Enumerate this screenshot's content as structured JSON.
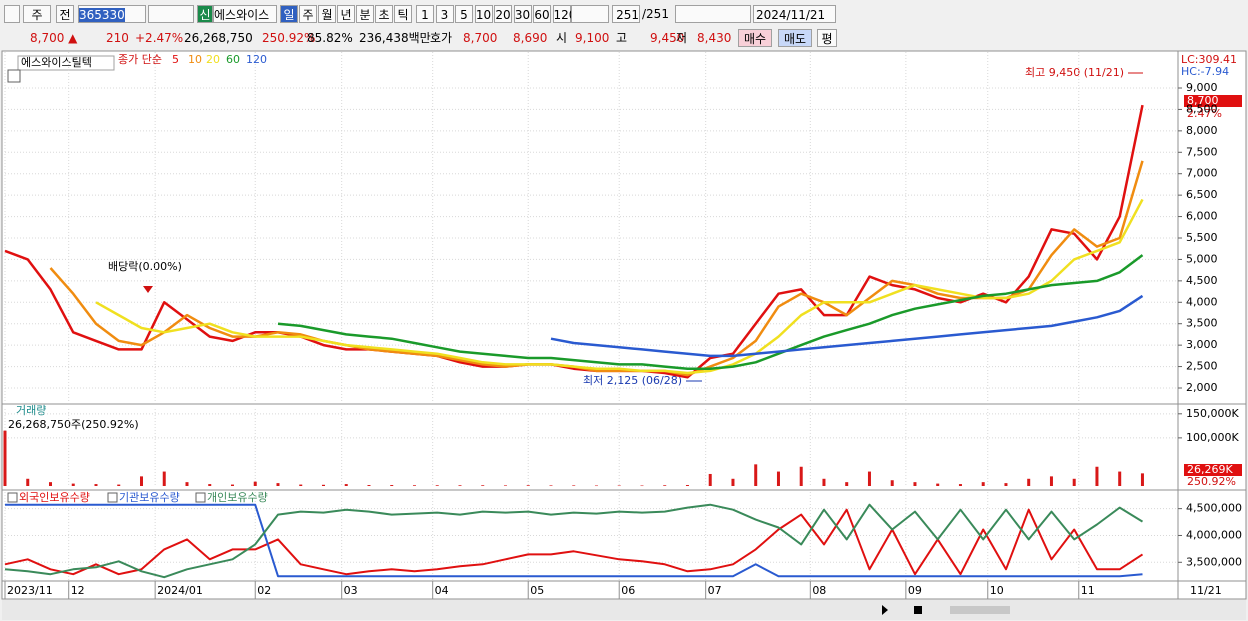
{
  "toolbar": {
    "period_type": "주",
    "prev": "전",
    "code": "365330",
    "badge": "신",
    "name": "에스와이스",
    "units": [
      "일",
      "주",
      "월",
      "년",
      "분",
      "초",
      "틱"
    ],
    "intervals": [
      "1",
      "3",
      "5",
      "10",
      "20",
      "30",
      "60",
      "120"
    ],
    "count": "251",
    "total": "/251",
    "date": "2024/11/21"
  },
  "info": {
    "price": "8,700 ▲",
    "change": "210",
    "change_pct": "+2.47%",
    "volume": "26,268,750",
    "volume_pct": "250.92%",
    "turnover": "85.82%",
    "amount": "236,438백만",
    "quote_label": "호가",
    "ask": "8,700",
    "bid": "8,690",
    "open_label": "시",
    "open": "9,100",
    "high_label": "고",
    "high": "9,450",
    "low_label": "저",
    "low": "8,430",
    "buy": "매수",
    "sell": "매도",
    "avg": "평"
  },
  "chart_data": [
    {
      "type": "line",
      "title": "에스와이스틸텍",
      "legend_title": "종가 단순",
      "x": [
        0,
        5,
        10,
        15,
        20,
        25,
        30,
        35,
        40,
        45,
        50,
        55,
        60,
        65,
        70,
        75,
        80,
        85,
        90,
        95,
        100,
        105,
        110,
        115,
        120,
        125,
        130,
        135,
        140,
        145,
        150,
        155,
        160,
        165,
        170,
        175,
        180,
        185,
        190,
        195,
        200,
        205,
        210,
        215,
        220,
        225,
        230,
        235,
        240,
        245,
        250
      ],
      "xlim": [
        0,
        251
      ],
      "xticks": [
        {
          "value": 0,
          "label": "2023/11"
        },
        {
          "value": 14,
          "label": "12"
        },
        {
          "value": 33,
          "label": "2024/01"
        },
        {
          "value": 55,
          "label": "02"
        },
        {
          "value": 74,
          "label": "03"
        },
        {
          "value": 94,
          "label": "04"
        },
        {
          "value": 115,
          "label": "05"
        },
        {
          "value": 135,
          "label": "06"
        },
        {
          "value": 154,
          "label": "07"
        },
        {
          "value": 177,
          "label": "08"
        },
        {
          "value": 198,
          "label": "09"
        },
        {
          "value": 216,
          "label": "10"
        },
        {
          "value": 236,
          "label": "11"
        }
      ],
      "last_date": "11/21",
      "ylim": [
        1650,
        9840
      ],
      "yticks": [
        {
          "value": 2000,
          "label": "2,000"
        },
        {
          "value": 2500,
          "label": "2,500"
        },
        {
          "value": 3000,
          "label": "3,000"
        },
        {
          "value": 3500,
          "label": "3,500"
        },
        {
          "value": 4000,
          "label": "4,000"
        },
        {
          "value": 4500,
          "label": "4,500"
        },
        {
          "value": 5000,
          "label": "5,000"
        },
        {
          "value": 5500,
          "label": "5,500"
        },
        {
          "value": 6000,
          "label": "6,000"
        },
        {
          "value": 6500,
          "label": "6,500"
        },
        {
          "value": 7000,
          "label": "7,000"
        },
        {
          "value": 7500,
          "label": "7,500"
        },
        {
          "value": 8000,
          "label": "8,000"
        },
        {
          "value": 8500,
          "label": "8,500"
        },
        {
          "value": 9000,
          "label": "9,000"
        }
      ],
      "grid": true,
      "series": [
        {
          "name": "5",
          "color": "#e01010",
          "values": [
            5200,
            5000,
            4300,
            3300,
            3100,
            2900,
            2900,
            4000,
            3600,
            3200,
            3100,
            3300,
            3300,
            3200,
            3000,
            2900,
            2900,
            2850,
            2800,
            2750,
            2600,
            2500,
            2500,
            2550,
            2550,
            2450,
            2400,
            2400,
            2400,
            2350,
            2250,
            2700,
            2800,
            3500,
            4200,
            4300,
            3700,
            3700,
            4600,
            4400,
            4300,
            4100,
            4000,
            4200,
            4000,
            4600,
            5700,
            5600,
            5000,
            6000,
            8600
          ]
        },
        {
          "name": "10",
          "color": "#f08c10",
          "values": [
            null,
            null,
            4800,
            4200,
            3500,
            3100,
            3000,
            3300,
            3700,
            3400,
            3200,
            3200,
            3300,
            3250,
            3100,
            3000,
            2900,
            2850,
            2800,
            2750,
            2650,
            2550,
            2500,
            2550,
            2550,
            2500,
            2400,
            2400,
            2400,
            2400,
            2300,
            2500,
            2700,
            3100,
            3900,
            4200,
            4000,
            3700,
            4100,
            4500,
            4400,
            4200,
            4100,
            4100,
            4100,
            4300,
            5100,
            5700,
            5300,
            5500,
            7300
          ]
        },
        {
          "name": "20",
          "color": "#f0e020",
          "values": [
            null,
            null,
            null,
            null,
            4000,
            3700,
            3400,
            3300,
            3400,
            3500,
            3300,
            3200,
            3200,
            3200,
            3100,
            3000,
            2950,
            2900,
            2850,
            2800,
            2700,
            2600,
            2550,
            2550,
            2550,
            2500,
            2450,
            2450,
            2400,
            2400,
            2350,
            2400,
            2550,
            2800,
            3200,
            3700,
            4000,
            4000,
            4000,
            4200,
            4400,
            4300,
            4200,
            4100,
            4100,
            4200,
            4500,
            5000,
            5200,
            5400,
            6400
          ]
        },
        {
          "name": "60",
          "color": "#1a9a2a",
          "values": [
            null,
            null,
            null,
            null,
            null,
            null,
            null,
            null,
            null,
            null,
            null,
            null,
            3500,
            3450,
            3350,
            3250,
            3200,
            3150,
            3050,
            2950,
            2850,
            2800,
            2750,
            2700,
            2700,
            2650,
            2600,
            2550,
            2550,
            2500,
            2450,
            2450,
            2500,
            2600,
            2800,
            3000,
            3200,
            3350,
            3500,
            3700,
            3850,
            3950,
            4050,
            4150,
            4200,
            4300,
            4400,
            4450,
            4500,
            4700,
            5100
          ]
        },
        {
          "name": "120",
          "color": "#2a5ad0",
          "values": [
            null,
            null,
            null,
            null,
            null,
            null,
            null,
            null,
            null,
            null,
            null,
            null,
            null,
            null,
            null,
            null,
            null,
            null,
            null,
            null,
            null,
            null,
            null,
            null,
            3150,
            3050,
            3000,
            2950,
            2900,
            2850,
            2800,
            2750,
            2750,
            2800,
            2850,
            2900,
            2950,
            3000,
            3050,
            3100,
            3150,
            3200,
            3250,
            3300,
            3350,
            3400,
            3450,
            3550,
            3650,
            3800,
            4150
          ]
        }
      ],
      "annotations": {
        "high": "최고 9,450 (11/21)",
        "low": "최저 2,125 (06/28)",
        "dividend": "배당락(0.00%)",
        "lc": "LC:309.41",
        "hc": "HC:-7.94",
        "current": "8,700",
        "current_pct": "2.47%"
      }
    },
    {
      "type": "bar",
      "title": "거래량",
      "subtitle": "26,268,750주(250.92%)",
      "color": "#d81818",
      "x": [
        0,
        5,
        10,
        15,
        20,
        25,
        30,
        35,
        40,
        45,
        50,
        55,
        60,
        65,
        70,
        75,
        80,
        85,
        90,
        95,
        100,
        105,
        110,
        115,
        120,
        125,
        130,
        135,
        140,
        145,
        150,
        155,
        160,
        165,
        170,
        175,
        180,
        185,
        190,
        195,
        200,
        205,
        210,
        215,
        220,
        225,
        230,
        235,
        240,
        245,
        250
      ],
      "xlim": [
        0,
        251
      ],
      "ylim": [
        0,
        160000
      ],
      "yticks": [
        {
          "value": 100000,
          "label": "100,000K"
        },
        {
          "value": 150000,
          "label": "150,000K"
        }
      ],
      "grid": true,
      "values": [
        115000,
        15000,
        8000,
        5000,
        4000,
        3000,
        20000,
        30000,
        8000,
        4000,
        3000,
        9000,
        6000,
        3000,
        2500,
        4000,
        2000,
        2000,
        1500,
        1500,
        1500,
        1500,
        1200,
        1500,
        1200,
        1200,
        1000,
        1000,
        1000,
        1500,
        2000,
        25000,
        15000,
        45000,
        30000,
        40000,
        15000,
        8000,
        30000,
        12000,
        8000,
        5000,
        4000,
        8000,
        6000,
        15000,
        20000,
        15000,
        40000,
        30000,
        26269
      ],
      "annotations": {
        "current": "26,269K",
        "current_pct": "250.92%"
      }
    },
    {
      "type": "line",
      "x": [
        0,
        5,
        10,
        15,
        20,
        25,
        30,
        35,
        40,
        45,
        50,
        55,
        60,
        65,
        70,
        75,
        80,
        85,
        90,
        95,
        100,
        105,
        110,
        115,
        120,
        125,
        130,
        135,
        140,
        145,
        150,
        155,
        160,
        165,
        170,
        175,
        180,
        185,
        190,
        195,
        200,
        205,
        210,
        215,
        220,
        225,
        230,
        235,
        240,
        245,
        250
      ],
      "xlim": [
        0,
        251
      ],
      "ylim": [
        3170000,
        4810000
      ],
      "yticks": [
        {
          "value": 3500000,
          "label": "3,500,000"
        },
        {
          "value": 4000000,
          "label": "4,000,000"
        },
        {
          "value": 4500000,
          "label": "4,500,000"
        }
      ],
      "grid": true,
      "series": [
        {
          "name": "외국인보유수량",
          "color": "#e01010",
          "values": [
            3463000,
            3556000,
            3370000,
            3278000,
            3463000,
            3278000,
            3370000,
            3741000,
            3926000,
            3556000,
            3741000,
            3741000,
            3926000,
            3463000,
            3370000,
            3278000,
            3333000,
            3370000,
            3333000,
            3370000,
            3426000,
            3463000,
            3556000,
            3648000,
            3648000,
            3704000,
            3630000,
            3556000,
            3519000,
            3463000,
            3333000,
            3370000,
            3463000,
            3741000,
            4111000,
            4389000,
            3833000,
            4481000,
            3370000,
            4111000,
            3278000,
            3926000,
            3278000,
            4111000,
            3370000,
            4481000,
            3556000,
            4111000,
            3370000,
            3370000,
            3648000
          ]
        },
        {
          "name": "기관보유수량",
          "color": "#2a5ad0",
          "values": [
            4574000,
            4574000,
            4574000,
            4574000,
            4574000,
            4574000,
            4574000,
            4574000,
            4574000,
            4574000,
            4574000,
            4574000,
            3241000,
            3241000,
            3241000,
            3241000,
            3241000,
            3241000,
            3241000,
            3241000,
            3241000,
            3241000,
            3241000,
            3241000,
            3241000,
            3241000,
            3241000,
            3241000,
            3241000,
            3241000,
            3241000,
            3241000,
            3241000,
            3463000,
            3241000,
            3241000,
            3241000,
            3241000,
            3241000,
            3241000,
            3241000,
            3241000,
            3241000,
            3241000,
            3241000,
            3241000,
            3241000,
            3241000,
            3241000,
            3241000,
            3278000
          ]
        },
        {
          "name": "개인보유수량",
          "color": "#3a8a5a",
          "values": [
            3370000,
            3333000,
            3278000,
            3370000,
            3407000,
            3519000,
            3333000,
            3222000,
            3370000,
            3463000,
            3556000,
            3833000,
            4389000,
            4444000,
            4426000,
            4481000,
            4444000,
            4389000,
            4407000,
            4426000,
            4389000,
            4444000,
            4426000,
            4444000,
            4389000,
            4426000,
            4407000,
            4444000,
            4426000,
            4444000,
            4519000,
            4574000,
            4481000,
            4296000,
            4148000,
            3833000,
            4481000,
            3926000,
            4574000,
            4111000,
            4444000,
            3926000,
            4481000,
            3926000,
            4481000,
            3926000,
            4444000,
            3926000,
            4204000,
            4519000,
            4259000
          ]
        }
      ]
    }
  ]
}
